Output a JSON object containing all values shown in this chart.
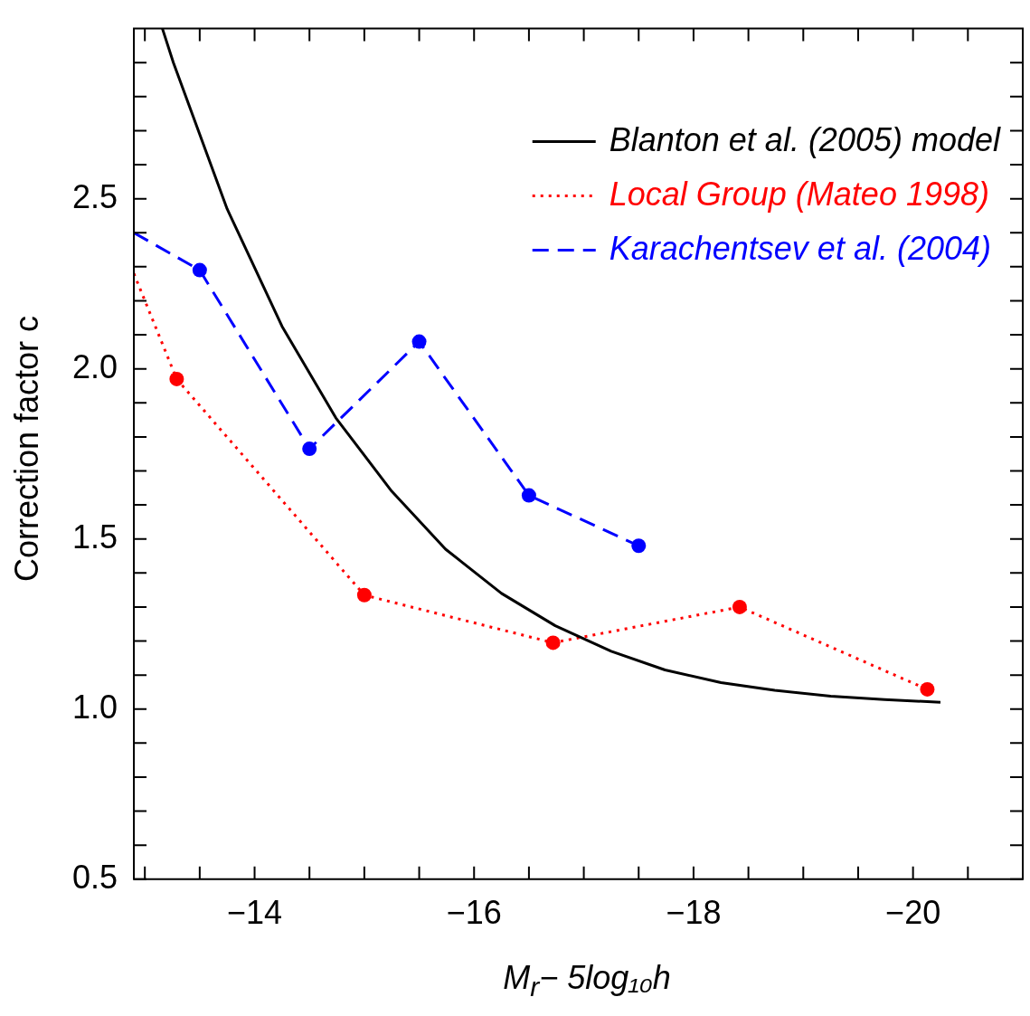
{
  "chart_data": {
    "type": "line",
    "xlabel": "M$_{r}$− 5log₁₀h",
    "ylabel": "Correction factor c",
    "xlim": [
      -12.9,
      -21
    ],
    "ylim": [
      0.5,
      3.0
    ],
    "xticks": [
      {
        "value": -13,
        "label": null
      },
      {
        "value": -13.5,
        "label": null
      },
      {
        "value": -14,
        "label": "−14"
      },
      {
        "value": -14.5,
        "label": null
      },
      {
        "value": -15,
        "label": null
      },
      {
        "value": -15.5,
        "label": null
      },
      {
        "value": -16,
        "label": "−16"
      },
      {
        "value": -16.5,
        "label": null
      },
      {
        "value": -17,
        "label": null
      },
      {
        "value": -17.5,
        "label": null
      },
      {
        "value": -18,
        "label": "−18"
      },
      {
        "value": -18.5,
        "label": null
      },
      {
        "value": -19,
        "label": null
      },
      {
        "value": -19.5,
        "label": null
      },
      {
        "value": -20,
        "label": "−20"
      },
      {
        "value": -20.5,
        "label": null
      }
    ],
    "yticks": [
      0.5,
      {
        "value": 0.6,
        "label": null
      },
      {
        "value": 0.7,
        "label": null
      },
      {
        "value": 0.8,
        "label": null
      },
      {
        "value": 0.9,
        "label": null
      },
      {
        "value": 1.0,
        "label": "1.0"
      },
      {
        "value": 1.1,
        "label": null
      },
      {
        "value": 1.2,
        "label": null
      },
      {
        "value": 1.3,
        "label": null
      },
      {
        "value": 1.4,
        "label": null
      },
      1.5,
      {
        "value": 1.6,
        "label": null
      },
      {
        "value": 1.7,
        "label": null
      },
      {
        "value": 1.8,
        "label": null
      },
      {
        "value": 1.9,
        "label": null
      },
      {
        "value": 2.0,
        "label": "2.0"
      },
      {
        "value": 2.1,
        "label": null
      },
      {
        "value": 2.2,
        "label": null
      },
      {
        "value": 2.3,
        "label": null
      },
      {
        "value": 2.4,
        "label": null
      },
      2.5,
      {
        "value": 2.6,
        "label": null
      },
      {
        "value": 2.7,
        "label": null
      },
      {
        "value": 2.8,
        "label": null
      },
      {
        "value": 2.9,
        "label": null
      }
    ],
    "legend": "top right",
    "tick_labels": "xy",
    "series": [
      {
        "name": "Blanton et al. (2005) model",
        "color": "#000000",
        "line_style": "solid",
        "marker": "none",
        "x": [
          -13.16,
          -13.26,
          -13.75,
          -14.25,
          -14.74,
          -15.25,
          -15.74,
          -16.25,
          -16.74,
          -17.25,
          -17.74,
          -18.25,
          -18.74,
          -19.25,
          -19.74,
          -20.25
        ],
        "values": [
          3.0,
          2.9,
          2.47,
          2.125,
          1.856,
          1.64,
          1.47,
          1.34,
          1.245,
          1.17,
          1.115,
          1.078,
          1.055,
          1.038,
          1.028,
          1.02
        ]
      },
      {
        "name": "Local Group (Mateo 1998)",
        "color": "#ff0000",
        "line_style": "dotted",
        "marker": "circle",
        "x": [
          -12.9,
          -13.29,
          -15.0,
          -16.72,
          -18.42,
          -20.13
        ],
        "values": [
          2.28,
          1.97,
          1.335,
          1.195,
          1.3,
          1.058
        ]
      },
      {
        "name": "Karachentsev et al. (2004)",
        "color": "#0000ff",
        "line_style": "dashed",
        "marker": "circle",
        "x": [
          -12.9,
          -13.5,
          -14.5,
          -15.5,
          -16.5,
          -17.5
        ],
        "values": [
          2.4,
          2.29,
          1.765,
          2.08,
          1.628,
          1.48
        ]
      }
    ]
  }
}
